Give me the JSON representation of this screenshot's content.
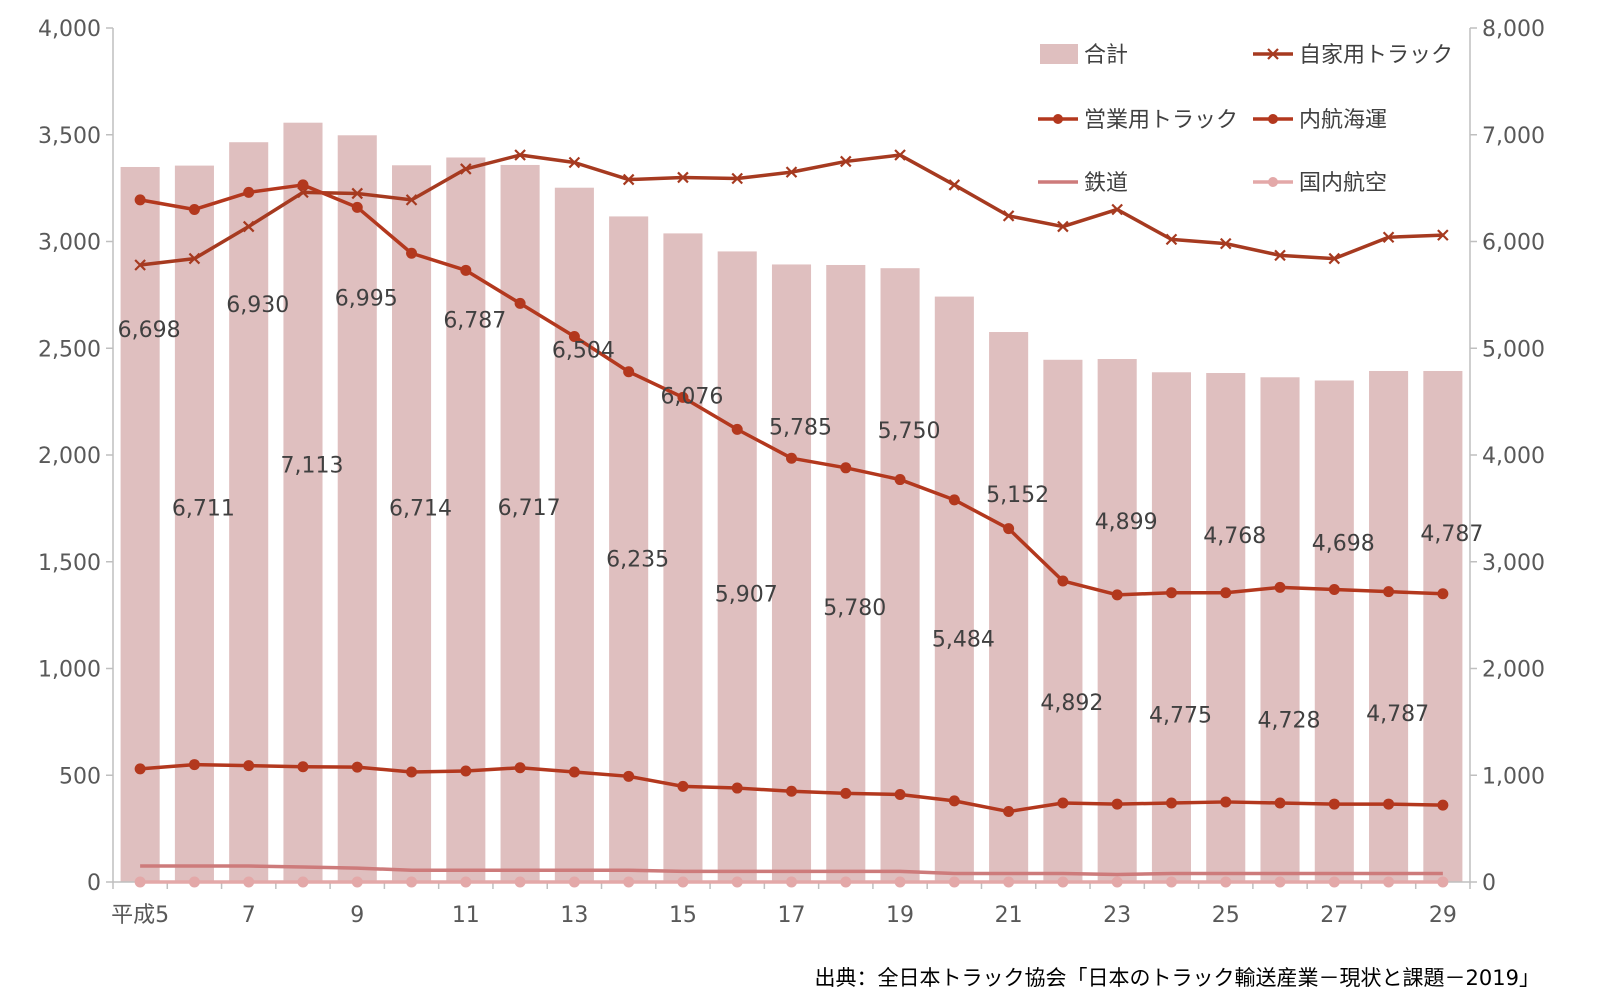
{
  "chart_data": {
    "type": "bar",
    "categories": [
      "平成5",
      "6",
      "7",
      "8",
      "9",
      "10",
      "11",
      "12",
      "13",
      "14",
      "15",
      "16",
      "17",
      "18",
      "19",
      "20",
      "21",
      "22",
      "23",
      "24",
      "25",
      "26",
      "27",
      "28",
      "29"
    ],
    "x_tick_labels": [
      "平成5",
      "7",
      "9",
      "11",
      "13",
      "15",
      "17",
      "19",
      "21",
      "23",
      "25",
      "27",
      "29"
    ],
    "left_axis": {
      "ticks": [
        "0",
        "500",
        "1,000",
        "1,500",
        "2,000",
        "2,500",
        "3,000",
        "3,500",
        "4,000"
      ],
      "ylim": [
        0,
        4000
      ]
    },
    "right_axis": {
      "ticks": [
        "0",
        "1,000",
        "2,000",
        "3,000",
        "4,000",
        "5,000",
        "6,000",
        "7,000",
        "8,000"
      ],
      "ylim": [
        0,
        8000
      ]
    },
    "series": [
      {
        "name": "合計",
        "kind": "bar",
        "axis": "right",
        "color": "#dfbfbf",
        "values": [
          6698,
          6711,
          6930,
          7113,
          6995,
          6714,
          6787,
          6717,
          6504,
          6235,
          6076,
          5907,
          5785,
          5780,
          5750,
          5484,
          5152,
          4892,
          4899,
          4775,
          4768,
          4728,
          4698,
          4787,
          4787
        ]
      },
      {
        "name": "自家用トラック",
        "kind": "line",
        "marker": "x",
        "axis": "left",
        "color": "#a63a20",
        "values": [
          2890,
          2920,
          3070,
          3230,
          3225,
          3195,
          3340,
          3405,
          3370,
          3290,
          3300,
          3295,
          3325,
          3375,
          3405,
          3265,
          3120,
          3070,
          3150,
          3010,
          2990,
          2935,
          2920,
          3020,
          3030
        ]
      },
      {
        "name": "営業用トラック",
        "kind": "line",
        "marker": "dot",
        "axis": "left",
        "color": "#b3381e",
        "values": [
          3195,
          3150,
          3230,
          3265,
          3160,
          2945,
          2865,
          2710,
          2555,
          2390,
          2270,
          2120,
          1985,
          1940,
          1885,
          1790,
          1655,
          1410,
          1345,
          1355,
          1355,
          1380,
          1370,
          1360,
          1350
        ]
      },
      {
        "name": "内航海運",
        "kind": "line",
        "marker": "dot",
        "axis": "left",
        "color": "#b3381e",
        "values": [
          530,
          550,
          545,
          540,
          538,
          515,
          520,
          535,
          515,
          495,
          448,
          440,
          425,
          415,
          410,
          380,
          330,
          370,
          365,
          370,
          375,
          370,
          365,
          365,
          360
        ]
      },
      {
        "name": "鉄道",
        "kind": "line",
        "marker": "none",
        "axis": "left",
        "color": "#cd7b7b",
        "values": [
          75,
          75,
          75,
          70,
          65,
          55,
          55,
          55,
          55,
          55,
          50,
          50,
          50,
          50,
          50,
          40,
          40,
          40,
          35,
          40,
          40,
          40,
          40,
          40,
          40
        ]
      },
      {
        "name": "国内航空",
        "kind": "line",
        "marker": "dot",
        "axis": "left",
        "color": "#e3a8a8",
        "values": [
          0,
          0,
          0,
          0,
          0,
          0,
          0,
          0,
          0,
          0,
          0,
          0,
          0,
          0,
          0,
          0,
          0,
          0,
          0,
          0,
          0,
          0,
          0,
          0,
          0
        ]
      }
    ],
    "data_labels": [
      "6,698",
      "6,711",
      "6,930",
      "7,113",
      "6,995",
      "6,714",
      "6,787",
      "6,717",
      "6,504",
      "6,235",
      "6,076",
      "5,907",
      "5,785",
      "5,780",
      "5,750",
      "5,484",
      "5,152",
      "4,892",
      "4,899",
      "4,775",
      "4,768",
      "4,728",
      "4,698",
      "4,787",
      "4,787"
    ],
    "legend": {
      "placement": "top-right",
      "columns": 2
    },
    "grid": false,
    "source": "出典：全日本トラック協会「日本のトラック輸送産業－現状と課題－2019」"
  }
}
